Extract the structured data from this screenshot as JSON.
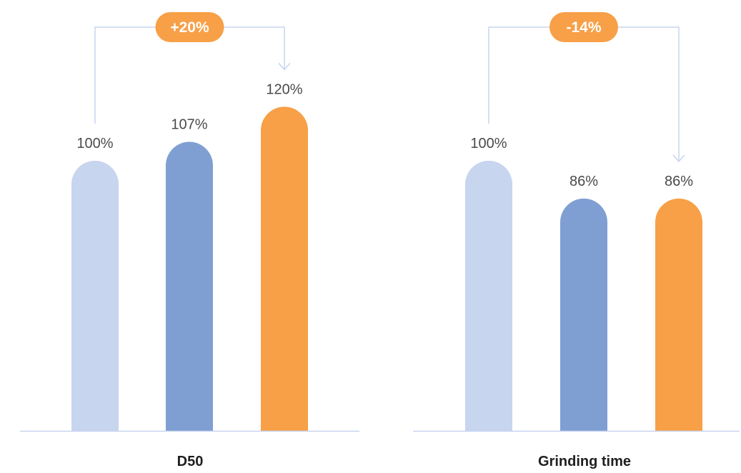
{
  "chart_data": [
    {
      "type": "bar",
      "title": "D50",
      "values": [
        100,
        107,
        120
      ],
      "value_labels": [
        "100%",
        "107%",
        "120%"
      ],
      "bar_colors": [
        "#c7d5ef",
        "#7f9fd3",
        "#f7a047"
      ],
      "ylim": [
        0,
        130
      ],
      "change_badge": "+20%",
      "comparison": {
        "from_index": 0,
        "to_index": 2
      },
      "grid": false
    },
    {
      "type": "bar",
      "title": "Grinding time",
      "values": [
        100,
        86,
        86
      ],
      "value_labels": [
        "100%",
        "86%",
        "86%"
      ],
      "bar_colors": [
        "#c7d5ef",
        "#7f9fd3",
        "#f7a047"
      ],
      "ylim": [
        0,
        130
      ],
      "change_badge": "-14%",
      "comparison": {
        "from_index": 0,
        "to_index": 2
      },
      "grid": false
    }
  ],
  "colors": {
    "badge": "#f7a047",
    "connector": "#c7d5ef",
    "baseline": "#c7d5ef"
  }
}
